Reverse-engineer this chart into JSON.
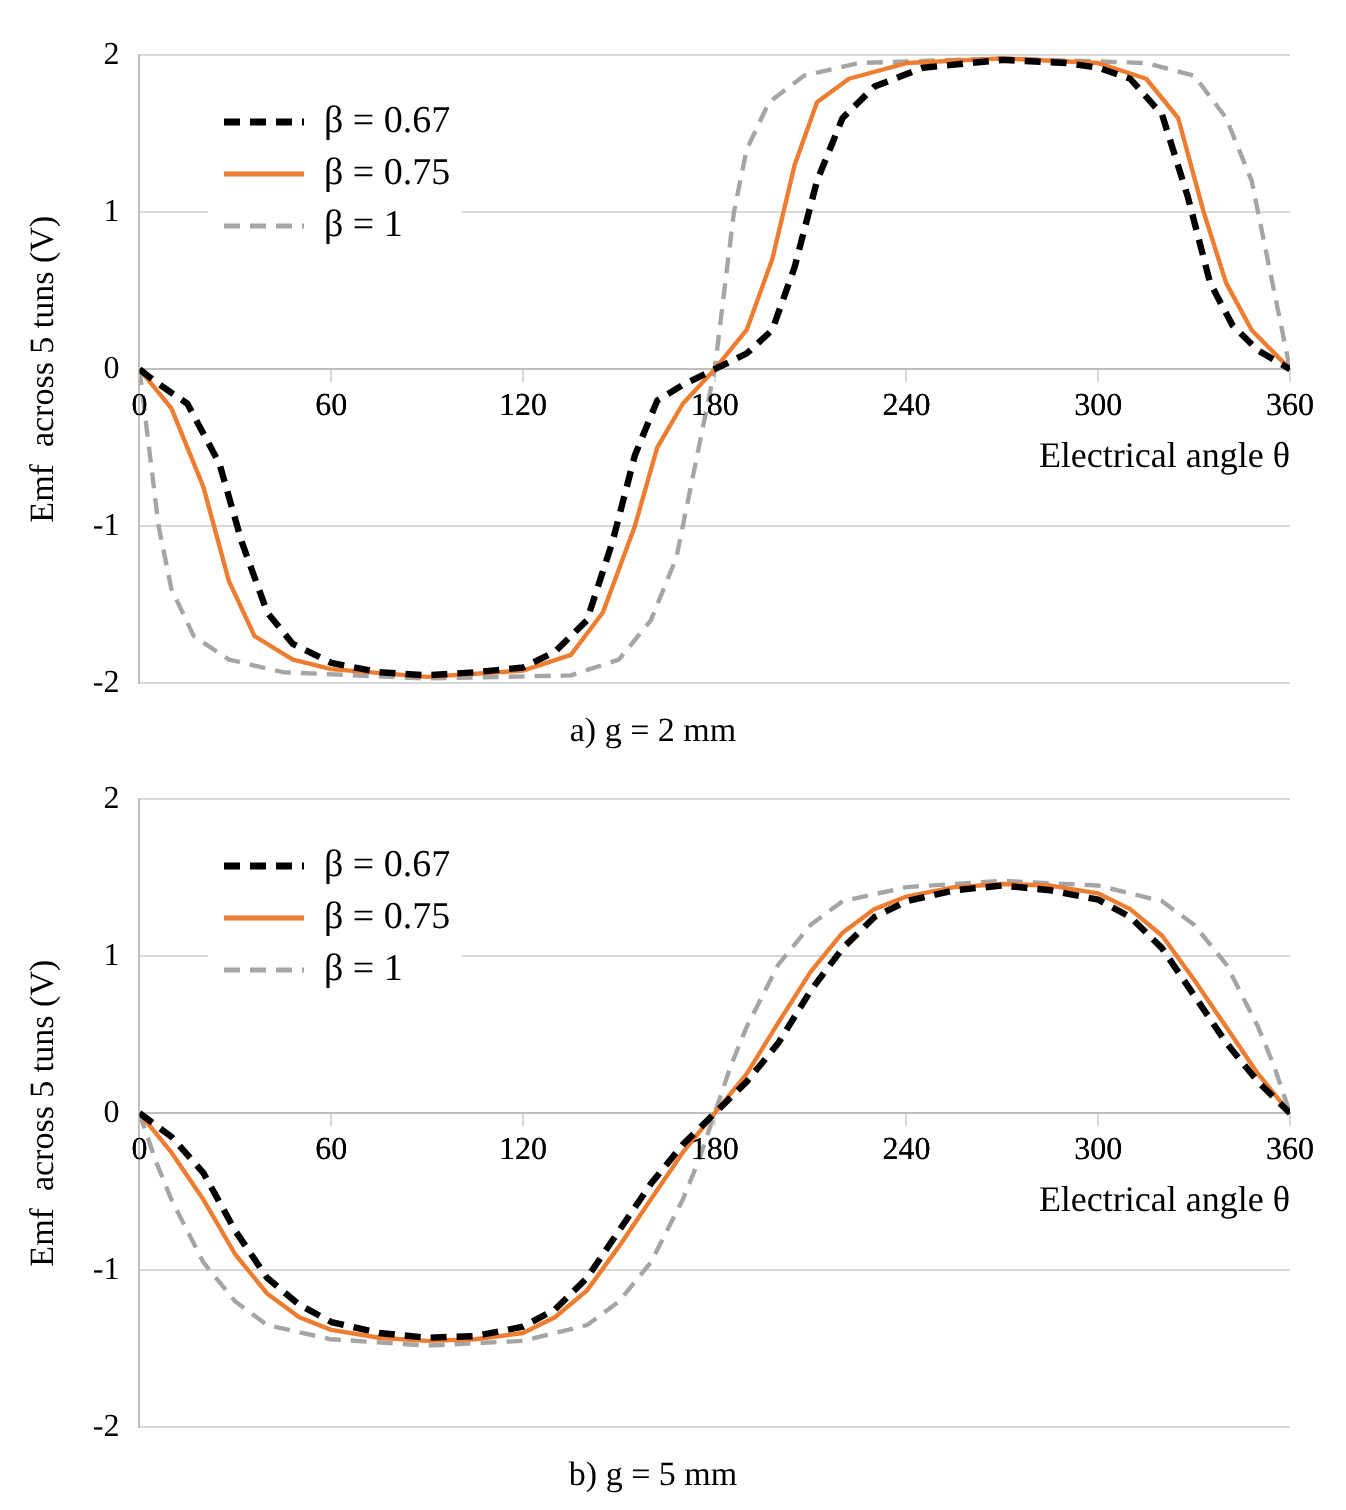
{
  "chart_data": [
    {
      "type": "line",
      "title": "a) g = 2 mm",
      "xlabel": "Electrical angle θ",
      "ylabel": "Emf  across 5 tuns (V)",
      "xlim": [
        0,
        360
      ],
      "xticks": [
        0,
        60,
        120,
        180,
        240,
        300,
        360
      ],
      "ylim": [
        -2,
        2
      ],
      "yticks": [
        -2,
        -1,
        0,
        1,
        2
      ],
      "grid": "y",
      "legend": "top left",
      "marker": "none",
      "series": [
        {
          "name": "β = 0.67",
          "color": "#000000",
          "line_style": "dashed",
          "x": [
            0,
            5,
            15,
            25,
            32,
            40,
            48,
            60,
            75,
            90,
            105,
            120,
            130,
            140,
            148,
            155,
            162,
            170,
            180,
            190,
            198,
            205,
            212,
            220,
            230,
            245,
            270,
            290,
            300,
            310,
            320,
            328,
            335,
            342,
            350,
            360
          ],
          "values": [
            0,
            -0.08,
            -0.22,
            -0.6,
            -1.1,
            -1.55,
            -1.75,
            -1.87,
            -1.93,
            -1.95,
            -1.93,
            -1.9,
            -1.8,
            -1.6,
            -1.1,
            -0.55,
            -0.2,
            -0.1,
            0,
            0.1,
            0.25,
            0.65,
            1.2,
            1.6,
            1.8,
            1.92,
            1.97,
            1.95,
            1.92,
            1.85,
            1.62,
            1.1,
            0.55,
            0.28,
            0.12,
            0
          ]
        },
        {
          "name": "β = 0.75",
          "color": "#ed7d31",
          "line_style": "solid",
          "x": [
            0,
            10,
            20,
            28,
            36,
            48,
            60,
            90,
            120,
            135,
            145,
            155,
            162,
            170,
            180,
            190,
            198,
            205,
            212,
            222,
            240,
            270,
            300,
            315,
            325,
            333,
            340,
            348,
            360
          ],
          "values": [
            0,
            -0.25,
            -0.75,
            -1.35,
            -1.7,
            -1.85,
            -1.91,
            -1.96,
            -1.92,
            -1.82,
            -1.55,
            -1,
            -0.5,
            -0.22,
            0,
            0.25,
            0.7,
            1.3,
            1.7,
            1.85,
            1.95,
            1.98,
            1.95,
            1.85,
            1.6,
            1,
            0.55,
            0.25,
            0
          ]
        },
        {
          "name": "β = 1",
          "color": "#a5a5a5",
          "line_style": "dashed",
          "x": [
            0,
            3,
            6,
            10,
            17,
            28,
            45,
            90,
            135,
            150,
            160,
            168,
            174,
            178,
            180,
            183,
            186,
            190,
            197,
            208,
            225,
            270,
            315,
            330,
            340,
            348,
            354,
            358,
            360
          ],
          "values": [
            0,
            -0.5,
            -1,
            -1.4,
            -1.7,
            -1.85,
            -1.93,
            -1.97,
            -1.95,
            -1.85,
            -1.6,
            -1.2,
            -0.6,
            -0.2,
            0,
            0.5,
            1,
            1.4,
            1.7,
            1.87,
            1.95,
            1.98,
            1.95,
            1.87,
            1.6,
            1.2,
            0.6,
            0.2,
            0
          ]
        }
      ]
    },
    {
      "type": "line",
      "title": "b) g = 5 mm",
      "xlabel": "Electrical angle θ",
      "ylabel": "Emf  across 5 tuns (V)",
      "xlim": [
        0,
        360
      ],
      "xticks": [
        0,
        60,
        120,
        180,
        240,
        300,
        360
      ],
      "ylim": [
        -2,
        2
      ],
      "yticks": [
        -2,
        -1,
        0,
        1,
        2
      ],
      "grid": "y",
      "legend": "top left",
      "marker": "none",
      "series": [
        {
          "name": "β = 0.67",
          "color": "#000000",
          "line_style": "dashed",
          "x": [
            0,
            10,
            20,
            30,
            40,
            50,
            60,
            75,
            90,
            105,
            120,
            130,
            140,
            150,
            160,
            170,
            180,
            190,
            200,
            210,
            220,
            230,
            240,
            255,
            270,
            285,
            300,
            310,
            320,
            330,
            340,
            350,
            360
          ],
          "values": [
            0,
            -0.15,
            -0.38,
            -0.75,
            -1.05,
            -1.22,
            -1.33,
            -1.4,
            -1.43,
            -1.42,
            -1.36,
            -1.25,
            -1.05,
            -0.75,
            -0.45,
            -0.2,
            0,
            0.2,
            0.45,
            0.78,
            1.05,
            1.25,
            1.35,
            1.42,
            1.45,
            1.42,
            1.36,
            1.25,
            1.05,
            0.75,
            0.45,
            0.2,
            0
          ]
        },
        {
          "name": "β = 0.75",
          "color": "#ed7d31",
          "line_style": "solid",
          "x": [
            0,
            10,
            20,
            30,
            40,
            50,
            60,
            75,
            90,
            105,
            120,
            130,
            140,
            150,
            160,
            170,
            180,
            190,
            200,
            210,
            220,
            230,
            240,
            255,
            270,
            285,
            300,
            310,
            320,
            330,
            340,
            350,
            360
          ],
          "values": [
            0,
            -0.25,
            -0.55,
            -0.9,
            -1.15,
            -1.3,
            -1.38,
            -1.43,
            -1.45,
            -1.44,
            -1.4,
            -1.3,
            -1.13,
            -0.85,
            -0.55,
            -0.25,
            0,
            0.25,
            0.58,
            0.9,
            1.15,
            1.3,
            1.38,
            1.44,
            1.46,
            1.45,
            1.4,
            1.3,
            1.13,
            0.85,
            0.55,
            0.25,
            0
          ]
        },
        {
          "name": "β = 1",
          "color": "#a5a5a5",
          "line_style": "dashed",
          "x": [
            0,
            5,
            10,
            20,
            30,
            40,
            60,
            90,
            120,
            140,
            150,
            160,
            170,
            175,
            180,
            185,
            190,
            200,
            210,
            220,
            240,
            270,
            300,
            320,
            330,
            340,
            350,
            355,
            360
          ],
          "values": [
            0,
            -0.3,
            -0.55,
            -0.95,
            -1.2,
            -1.35,
            -1.44,
            -1.48,
            -1.45,
            -1.35,
            -1.2,
            -0.95,
            -0.55,
            -0.3,
            0,
            0.3,
            0.55,
            0.95,
            1.2,
            1.35,
            1.44,
            1.48,
            1.45,
            1.35,
            1.2,
            0.95,
            0.55,
            0.3,
            0
          ]
        }
      ]
    }
  ]
}
